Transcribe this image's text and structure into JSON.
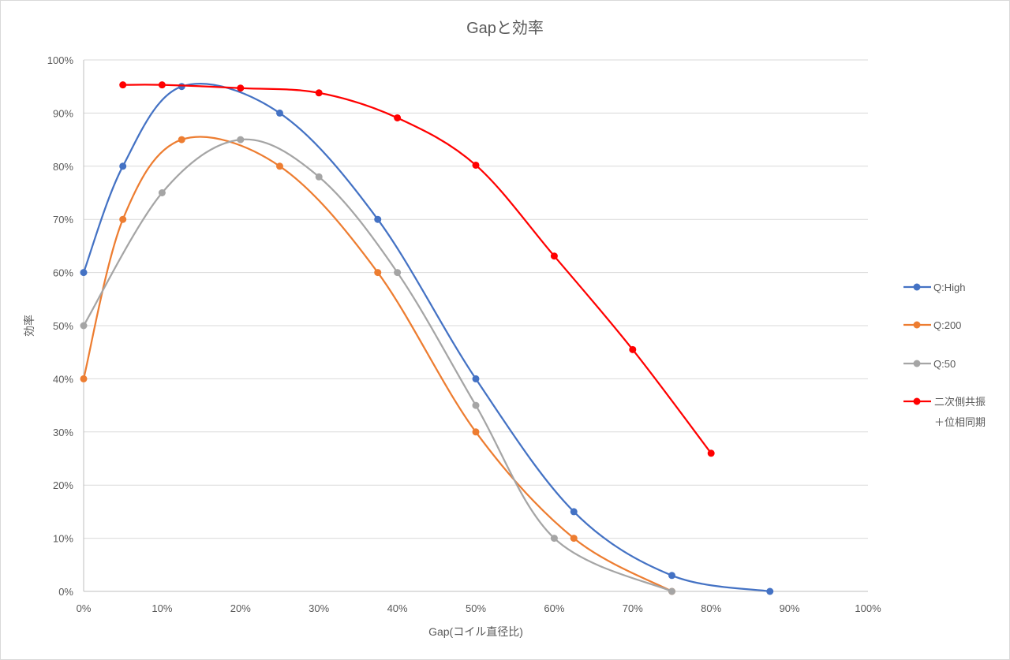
{
  "chart_data": {
    "type": "line",
    "title": "Gapと効率",
    "xlabel": "Gap(コイル直径比)",
    "ylabel": "効率",
    "xlim": [
      0,
      100
    ],
    "ylim": [
      0,
      100
    ],
    "x_ticks": [
      "0%",
      "10%",
      "20%",
      "30%",
      "40%",
      "50%",
      "60%",
      "70%",
      "80%",
      "90%",
      "100%"
    ],
    "y_ticks": [
      "0%",
      "10%",
      "20%",
      "30%",
      "40%",
      "50%",
      "60%",
      "70%",
      "80%",
      "90%",
      "100%"
    ],
    "grid": "horizontal",
    "smoothed": true,
    "legend_position": "right",
    "series": [
      {
        "name": "Q:High",
        "color": "#4472c4",
        "points": [
          [
            0,
            60
          ],
          [
            5,
            80
          ],
          [
            12.5,
            95
          ],
          [
            25,
            90
          ],
          [
            37.5,
            70
          ],
          [
            50,
            40
          ],
          [
            62.5,
            15
          ],
          [
            75,
            3
          ],
          [
            87.5,
            0
          ]
        ]
      },
      {
        "name": "Q:200",
        "color": "#ed7d31",
        "points": [
          [
            0,
            40
          ],
          [
            5,
            70
          ],
          [
            12.5,
            85
          ],
          [
            25,
            80
          ],
          [
            37.5,
            60
          ],
          [
            50,
            30
          ],
          [
            62.5,
            10
          ],
          [
            75,
            0
          ]
        ]
      },
      {
        "name": "Q:50",
        "color": "#a5a5a5",
        "points": [
          [
            0,
            50
          ],
          [
            10,
            75
          ],
          [
            20,
            85
          ],
          [
            30,
            78
          ],
          [
            40,
            60
          ],
          [
            50,
            35
          ],
          [
            60,
            10
          ],
          [
            75,
            0
          ]
        ]
      },
      {
        "name": "二次側共振＋位相同期",
        "legend_lines": [
          "二次側共振",
          "＋位相同期"
        ],
        "color": "#ff0000",
        "points": [
          [
            5,
            95.3
          ],
          [
            10,
            95.3
          ],
          [
            20,
            94.7
          ],
          [
            30,
            93.8
          ],
          [
            40,
            89.1
          ],
          [
            50,
            80.2
          ],
          [
            60,
            63.1
          ],
          [
            70,
            45.5
          ],
          [
            80,
            26
          ]
        ]
      }
    ]
  }
}
